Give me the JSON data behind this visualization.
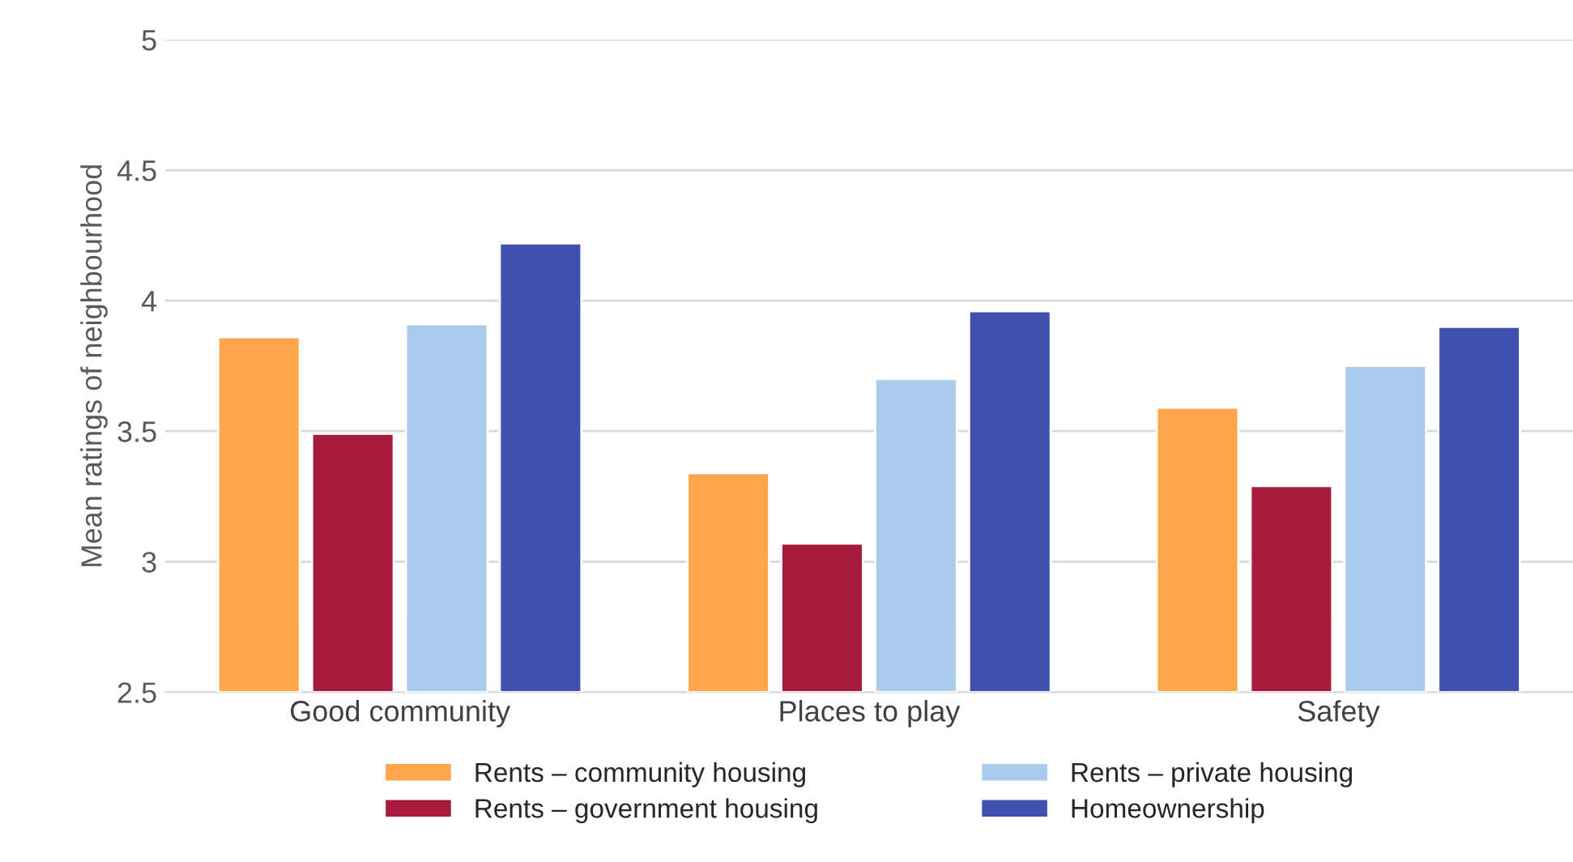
{
  "chart_data": {
    "type": "bar",
    "ylabel": "Mean ratings of neighbourhood",
    "categories": [
      "Good community",
      "Places to play",
      "Safety"
    ],
    "series": [
      {
        "name": "Rents – community housing",
        "color": "#ffa64d",
        "values": [
          3.86,
          3.34,
          3.59
        ]
      },
      {
        "name": "Rents – government housing",
        "color": "#a81c3b",
        "values": [
          3.49,
          3.07,
          3.29
        ]
      },
      {
        "name": "Rents – private housing",
        "color": "#a9cbec",
        "values": [
          3.91,
          3.7,
          3.75
        ]
      },
      {
        "name": "Homeownership",
        "color": "#3f51ad",
        "values": [
          4.22,
          3.96,
          3.9
        ]
      }
    ],
    "ylim": [
      2.5,
      5
    ],
    "yticks": [
      2.5,
      3,
      3.5,
      4,
      4.5,
      5
    ],
    "grid": "y",
    "legend": "bottom"
  }
}
